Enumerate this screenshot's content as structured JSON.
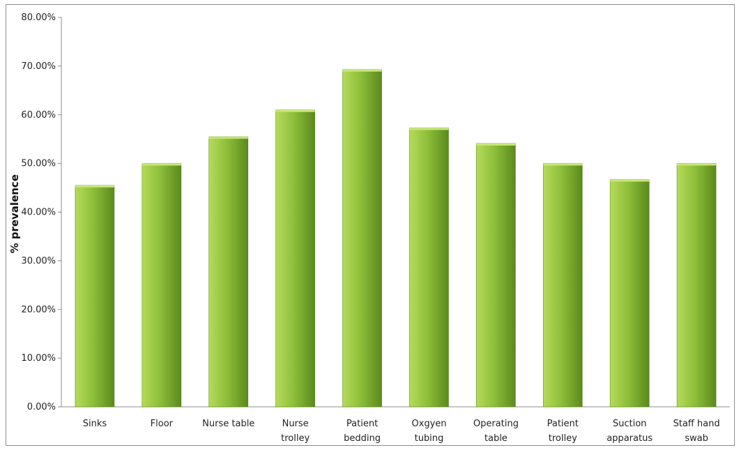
{
  "chart_data": {
    "type": "bar",
    "title": "",
    "xlabel": "",
    "ylabel": "% prevalence",
    "categories": [
      [
        "Sinks"
      ],
      [
        "Floor"
      ],
      [
        "Nurse table"
      ],
      [
        "Nurse",
        "trolley"
      ],
      [
        "Patient",
        "bedding"
      ],
      [
        "Oxgyen",
        "tubing"
      ],
      [
        "Operating",
        "table"
      ],
      [
        "Patient",
        "trolley"
      ],
      [
        "Suction",
        "apparatus"
      ],
      [
        "Staff hand",
        "swab"
      ]
    ],
    "values": [
      45.5,
      50.0,
      55.5,
      61.0,
      69.3,
      57.3,
      54.1,
      50.0,
      46.7,
      50.0
    ],
    "ylim": [
      0,
      80
    ],
    "yticks": [
      "0.00%",
      "10.00%",
      "20.00%",
      "30.00%",
      "40.00%",
      "50.00%",
      "60.00%",
      "70.00%",
      "80.00%"
    ],
    "grid": false,
    "legend": "none",
    "colors": {
      "bar_light": "#b5db5a",
      "bar_mid": "#8fbf3a",
      "bar_dark": "#5a8a1c",
      "bar_top": "#c7e77a",
      "axis": "#8c8c8c"
    }
  }
}
